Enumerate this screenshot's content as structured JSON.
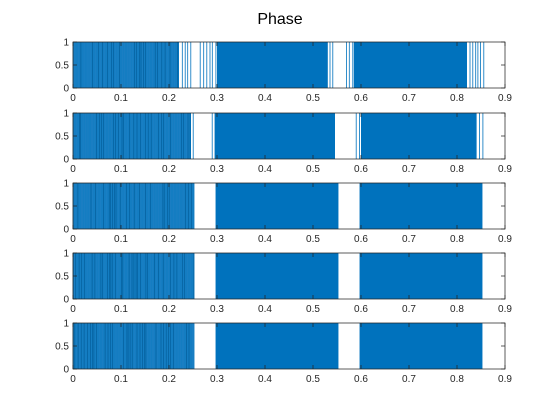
{
  "figure": {
    "title": "Phase"
  },
  "chart_data": {
    "type": "line",
    "title": "Phase",
    "xlim": [
      0,
      0.9
    ],
    "ylim": [
      0,
      1
    ],
    "x_ticks": [
      0,
      0.1,
      0.2,
      0.3,
      0.4,
      0.5,
      0.6,
      0.7,
      0.8,
      0.9
    ],
    "x_tick_labels": [
      "0",
      "0.1",
      "0.2",
      "0.3",
      "0.4",
      "0.5",
      "0.6",
      "0.7",
      "0.8",
      "0.9"
    ],
    "y_ticks": [
      0,
      0.5,
      1
    ],
    "y_tick_labels": [
      "0",
      "0.5",
      "1"
    ],
    "series_color": "#0072BD",
    "grid": false,
    "subplots": [
      {
        "name": "subplot-1",
        "values_range": [
          0,
          1
        ],
        "solid_intervals": [
          [
            0.3,
            0.53
          ],
          [
            0.585,
            0.82
          ]
        ],
        "dense_intervals": [
          [
            0.0,
            0.22
          ]
        ],
        "sparse_intervals": [
          [
            0.22,
            0.25
          ],
          [
            0.265,
            0.3
          ],
          [
            0.53,
            0.545
          ],
          [
            0.57,
            0.585
          ],
          [
            0.82,
            0.86
          ]
        ],
        "gaps": [
          [
            0.25,
            0.265
          ],
          [
            0.545,
            0.57
          ],
          [
            0.86,
            0.9
          ]
        ]
      },
      {
        "name": "subplot-2",
        "values_range": [
          0,
          1
        ],
        "solid_intervals": [
          [
            0.295,
            0.545
          ],
          [
            0.6,
            0.84
          ]
        ],
        "dense_intervals": [
          [
            0.0,
            0.245
          ]
        ],
        "sparse_intervals": [
          [
            0.245,
            0.255
          ],
          [
            0.29,
            0.295
          ],
          [
            0.545,
            0.55
          ],
          [
            0.59,
            0.6
          ],
          [
            0.84,
            0.855
          ]
        ],
        "gaps": [
          [
            0.255,
            0.29
          ],
          [
            0.55,
            0.59
          ],
          [
            0.855,
            0.9
          ]
        ]
      },
      {
        "name": "subplot-3",
        "values_range": [
          0,
          1
        ],
        "solid_intervals": [
          [
            0.297,
            0.553
          ],
          [
            0.597,
            0.853
          ]
        ],
        "dense_intervals": [
          [
            0.0,
            0.253
          ]
        ],
        "sparse_intervals": [],
        "gaps": [
          [
            0.253,
            0.297
          ],
          [
            0.553,
            0.597
          ],
          [
            0.853,
            0.9
          ]
        ]
      },
      {
        "name": "subplot-4",
        "values_range": [
          0,
          1
        ],
        "solid_intervals": [
          [
            0.297,
            0.553
          ],
          [
            0.597,
            0.853
          ]
        ],
        "dense_intervals": [
          [
            0.0,
            0.253
          ]
        ],
        "sparse_intervals": [],
        "gaps": [
          [
            0.253,
            0.297
          ],
          [
            0.553,
            0.597
          ],
          [
            0.853,
            0.9
          ]
        ]
      },
      {
        "name": "subplot-5",
        "values_range": [
          0,
          1
        ],
        "solid_intervals": [
          [
            0.297,
            0.553
          ],
          [
            0.597,
            0.853
          ]
        ],
        "dense_intervals": [
          [
            0.0,
            0.253
          ]
        ],
        "sparse_intervals": [],
        "gaps": [
          [
            0.253,
            0.297
          ],
          [
            0.553,
            0.597
          ],
          [
            0.853,
            0.9
          ]
        ]
      }
    ]
  }
}
